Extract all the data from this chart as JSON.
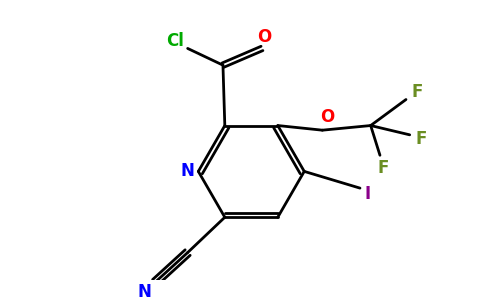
{
  "bg_color": "#ffffff",
  "bond_color": "#000000",
  "colors": {
    "N": "#0000ff",
    "O": "#ff0000",
    "Cl": "#00aa00",
    "F": "#6b8e23",
    "I": "#8b008b",
    "bond": "#000000"
  },
  "lw": 2.0,
  "fs": 12
}
